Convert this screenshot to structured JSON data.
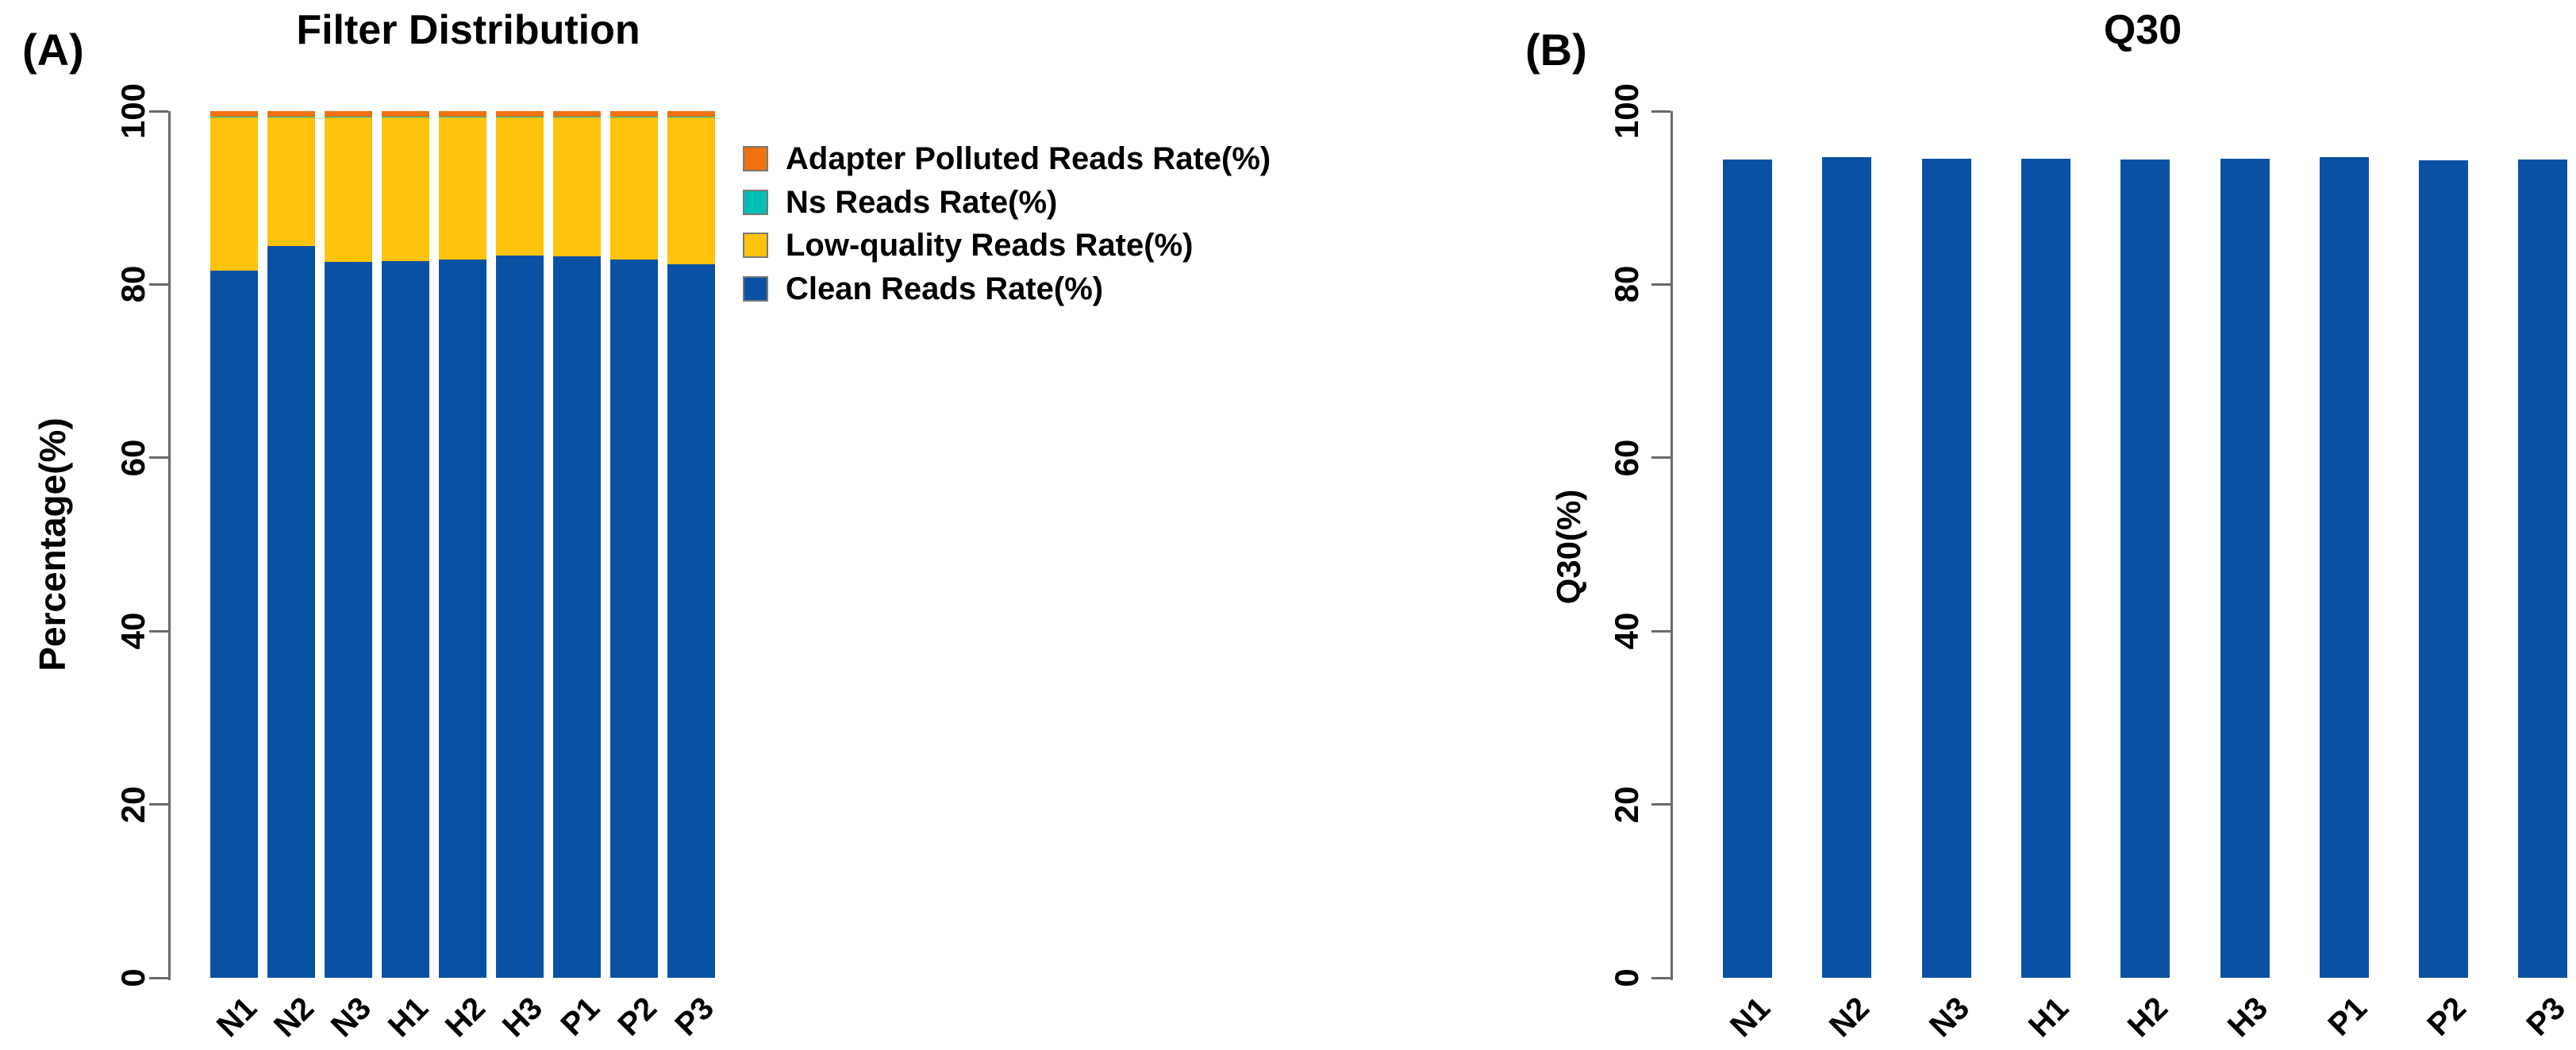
{
  "figure": {
    "panel_labels": {
      "a": "(A)",
      "b": "(B)"
    },
    "background": "#ffffff",
    "axis_color": "#6a6a6a",
    "text_color": "#000000"
  },
  "chart_data": [
    {
      "panel": "A",
      "type": "bar",
      "stacked": true,
      "title": "Filter Distribution",
      "xlabel": "",
      "ylabel": "Percentage(%)",
      "ylim": [
        0,
        100
      ],
      "yticks": [
        0,
        20,
        40,
        60,
        80,
        100
      ],
      "grid": false,
      "legend_position": "right",
      "categories": [
        "N1",
        "N2",
        "N3",
        "H1",
        "H2",
        "H3",
        "P1",
        "P2",
        "P3"
      ],
      "series": [
        {
          "name": "Clean Reads Rate(%)",
          "color": "#0B51A3",
          "values": [
            81.6,
            84.4,
            82.6,
            82.7,
            82.9,
            83.3,
            83.2,
            82.9,
            82.3
          ]
        },
        {
          "name": "Low-quality Reads Rate(%)",
          "color": "#FDC30D",
          "values": [
            17.75,
            14.95,
            16.75,
            16.65,
            16.45,
            16.05,
            16.15,
            16.45,
            17.05
          ]
        },
        {
          "name": "Ns Reads Rate(%)",
          "color": "#00BFB4",
          "values": [
            0.05,
            0.05,
            0.05,
            0.05,
            0.05,
            0.05,
            0.05,
            0.05,
            0.05
          ]
        },
        {
          "name": "Adapter Polluted Reads Rate(%)",
          "color": "#F1700F",
          "values": [
            0.6,
            0.6,
            0.6,
            0.6,
            0.6,
            0.6,
            0.6,
            0.6,
            0.6
          ]
        }
      ],
      "legend": [
        {
          "label": "Adapter Polluted Reads Rate(%)",
          "color": "#F1700F"
        },
        {
          "label": "Ns Reads Rate(%)",
          "color": "#00BFB4"
        },
        {
          "label": "Low-quality Reads Rate(%)",
          "color": "#FDC30D"
        },
        {
          "label": "Clean Reads Rate(%)",
          "color": "#0B51A3"
        }
      ]
    },
    {
      "panel": "B",
      "type": "bar",
      "stacked": false,
      "title": "Q30",
      "xlabel": "",
      "ylabel": "Q30(%)",
      "ylim": [
        0,
        100
      ],
      "yticks": [
        0,
        20,
        40,
        60,
        80,
        100
      ],
      "grid": false,
      "bar_color": "#0B51A3",
      "categories": [
        "N1",
        "N2",
        "N3",
        "H1",
        "H2",
        "H3",
        "P1",
        "P2",
        "P3"
      ],
      "values": [
        94.4,
        94.7,
        94.5,
        94.5,
        94.4,
        94.5,
        94.7,
        94.3,
        94.4
      ]
    }
  ]
}
